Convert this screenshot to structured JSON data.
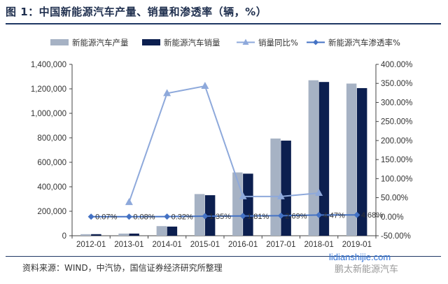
{
  "header": {
    "title": "图 1：中国新能源汽车产量、销量和渗透率（辆，%）"
  },
  "footer": {
    "source": "资料来源：WIND，中汽协，国信证券经济研究所整理"
  },
  "watermark": {
    "url": "lidianshijie.com",
    "brand": "鹏太新能源汽车"
  },
  "chart_data": {
    "type": "bar",
    "categories": [
      "2012-01",
      "2013-01",
      "2014-01",
      "2015-01",
      "2016-01",
      "2017-01",
      "2018-01",
      "2019-01"
    ],
    "y_left": {
      "ylim": [
        0,
        1400000
      ],
      "ticks": [
        "0",
        "200,000",
        "400,000",
        "600,000",
        "800,000",
        "1,000,000",
        "1,200,000",
        "1,400,000"
      ]
    },
    "y_right": {
      "ylim": [
        -50,
        400
      ],
      "ticks": [
        "-50.00%",
        "0.00%",
        "50.00%",
        "100.00%",
        "150.00%",
        "200.00%",
        "250.00%",
        "300.00%",
        "350.00%",
        "400.00%"
      ]
    },
    "series": [
      {
        "name": "新能源汽车产量",
        "kind": "bar",
        "axis": "left",
        "color": "#a6b2c4",
        "values": [
          12552,
          17533,
          78499,
          340471,
          517000,
          794000,
          1270000,
          1243000
        ]
      },
      {
        "name": "新能源汽车销量",
        "kind": "bar",
        "axis": "left",
        "color": "#0c1f4f",
        "values": [
          12791,
          17642,
          74763,
          331092,
          507000,
          777000,
          1256000,
          1206000
        ]
      },
      {
        "name": "销量同比%",
        "kind": "line",
        "axis": "right",
        "color": "#8ea9db",
        "marker": "triangle",
        "values": [
          null,
          38,
          324,
          343,
          53,
          53,
          62,
          null
        ]
      },
      {
        "name": "新能源汽车渗透率%",
        "kind": "line",
        "axis": "right",
        "color": "#4472c4",
        "marker": "diamond",
        "values": [
          0.07,
          0.08,
          0.32,
          1.35,
          1.81,
          2.69,
          4.47,
          4.68
        ],
        "labels": [
          "0.07%",
          "0.08%",
          "0.32%",
          "1.35%",
          "1.81%",
          "2.69%",
          "4.47%",
          "4.68%"
        ]
      }
    ],
    "legend": "top",
    "grid": false
  }
}
